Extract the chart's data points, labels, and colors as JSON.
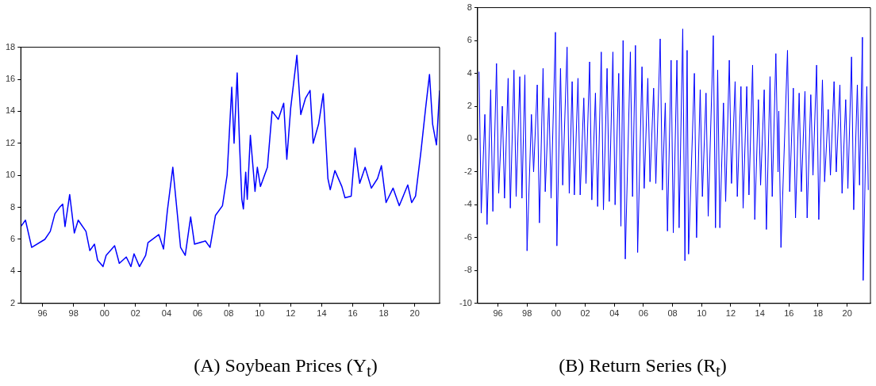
{
  "chart_data": [
    {
      "type": "line",
      "title": "(A) Soybean Prices (Y$_{t}$)",
      "xlim": [
        1994.6,
        2021.6
      ],
      "xticks": [
        {
          "value": 1996,
          "label": "96"
        },
        {
          "value": 1998,
          "label": "98"
        },
        {
          "value": 2000,
          "label": "00"
        },
        {
          "value": 2002,
          "label": "02"
        },
        {
          "value": 2004,
          "label": "04"
        },
        {
          "value": 2006,
          "label": "06"
        },
        {
          "value": 2008,
          "label": "08"
        },
        {
          "value": 2010,
          "label": "10"
        },
        {
          "value": 2012,
          "label": "12"
        },
        {
          "value": 2014,
          "label": "14"
        },
        {
          "value": 2016,
          "label": "16"
        },
        {
          "value": 2018,
          "label": "18"
        },
        {
          "value": 2020,
          "label": "20"
        }
      ],
      "ylim": [
        2,
        18
      ],
      "yticks": [
        2,
        4,
        6,
        8,
        10,
        12,
        14,
        16,
        18
      ],
      "series": [
        {
          "color": "#0000ff",
          "x": [
            1994.6,
            1994.9,
            1995.3,
            1996.15,
            1996.5,
            1996.8,
            1997.1,
            1997.3,
            1997.45,
            1997.75,
            1998.05,
            1998.3,
            1998.8,
            1999.05,
            1999.35,
            1999.55,
            1999.9,
            2000.1,
            2000.65,
            2000.95,
            2001.4,
            2001.7,
            2001.9,
            2002.25,
            2002.65,
            2002.8,
            2003.5,
            2003.8,
            2004.05,
            2004.4,
            2004.7,
            2004.9,
            2005.2,
            2005.55,
            2005.8,
            2006.5,
            2006.8,
            2007.15,
            2007.6,
            2007.9,
            2008.2,
            2008.35,
            2008.55,
            2008.7,
            2008.85,
            2008.95,
            2009.1,
            2009.2,
            2009.4,
            2009.7,
            2009.85,
            2010.05,
            2010.5,
            2010.8,
            2011.2,
            2011.55,
            2011.75,
            2012.0,
            2012.4,
            2012.65,
            2012.95,
            2013.25,
            2013.45,
            2013.8,
            2014.1,
            2014.4,
            2014.55,
            2014.85,
            2015.3,
            2015.5,
            2015.9,
            2016.15,
            2016.45,
            2016.8,
            2017.2,
            2017.6,
            2017.85,
            2018.15,
            2018.6,
            2019.0,
            2019.55,
            2019.8,
            2020.05,
            2020.4,
            2020.7,
            2020.95,
            2021.15,
            2021.4,
            2021.6
          ],
          "values": [
            6.8,
            7.2,
            5.5,
            6.0,
            6.5,
            7.6,
            8.0,
            8.2,
            6.8,
            8.8,
            6.4,
            7.2,
            6.5,
            5.3,
            5.7,
            4.7,
            4.3,
            5.0,
            5.6,
            4.5,
            4.9,
            4.3,
            5.1,
            4.3,
            5.0,
            5.8,
            6.3,
            5.4,
            7.8,
            10.5,
            7.5,
            5.5,
            5.0,
            7.4,
            5.7,
            5.9,
            5.5,
            7.5,
            8.1,
            10.0,
            15.5,
            12.0,
            16.4,
            12.0,
            8.5,
            7.9,
            10.2,
            8.5,
            12.5,
            9.0,
            10.5,
            9.3,
            10.5,
            14.0,
            13.5,
            14.5,
            11.0,
            14.2,
            17.5,
            13.8,
            14.8,
            15.3,
            12.0,
            13.2,
            15.1,
            9.8,
            9.1,
            10.3,
            9.3,
            8.6,
            8.7,
            11.7,
            9.5,
            10.5,
            9.2,
            9.8,
            10.6,
            8.3,
            9.2,
            8.1,
            9.4,
            8.3,
            8.7,
            11.5,
            14.2,
            16.3,
            13.2,
            11.9,
            15.3
          ]
        }
      ]
    },
    {
      "type": "line",
      "title": "(B) Return Series (R$_{t}$)",
      "xlim": [
        1994.6,
        2021.6
      ],
      "xticks": [
        {
          "value": 1996,
          "label": "96"
        },
        {
          "value": 1998,
          "label": "98"
        },
        {
          "value": 2000,
          "label": "00"
        },
        {
          "value": 2002,
          "label": "02"
        },
        {
          "value": 2004,
          "label": "04"
        },
        {
          "value": 2006,
          "label": "06"
        },
        {
          "value": 2008,
          "label": "08"
        },
        {
          "value": 2010,
          "label": "10"
        },
        {
          "value": 2012,
          "label": "12"
        },
        {
          "value": 2014,
          "label": "14"
        },
        {
          "value": 2016,
          "label": "16"
        },
        {
          "value": 2018,
          "label": "18"
        },
        {
          "value": 2020,
          "label": "20"
        }
      ],
      "ylim": [
        -10,
        8
      ],
      "yticks": [
        -10,
        -8,
        -6,
        -4,
        -2,
        0,
        2,
        4,
        6,
        8
      ],
      "series": [
        {
          "color": "#0000ff",
          "x": [
            1994.7,
            1994.85,
            1995.1,
            1995.25,
            1995.5,
            1995.65,
            1995.9,
            1996.05,
            1996.3,
            1996.45,
            1996.7,
            1996.85,
            1997.1,
            1997.25,
            1997.5,
            1997.65,
            1997.85,
            1998.0,
            1998.3,
            1998.45,
            1998.7,
            1998.85,
            1999.1,
            1999.25,
            1999.5,
            1999.65,
            1999.95,
            2000.05,
            2000.3,
            2000.45,
            2000.75,
            2000.9,
            2001.1,
            2001.25,
            2001.5,
            2001.65,
            2001.9,
            2002.05,
            2002.3,
            2002.45,
            2002.7,
            2002.85,
            2003.1,
            2003.25,
            2003.5,
            2003.65,
            2003.9,
            2004.05,
            2004.3,
            2004.45,
            2004.6,
            2004.75,
            2005.1,
            2005.25,
            2005.45,
            2005.6,
            2005.9,
            2006.05,
            2006.3,
            2006.45,
            2006.7,
            2006.85,
            2007.15,
            2007.3,
            2007.5,
            2007.65,
            2007.9,
            2008.05,
            2008.3,
            2008.45,
            2008.7,
            2008.85,
            2009.0,
            2009.1,
            2009.5,
            2009.65,
            2009.9,
            2010.05,
            2010.3,
            2010.45,
            2010.8,
            2010.95,
            2011.1,
            2011.25,
            2011.5,
            2011.65,
            2011.9,
            2012.05,
            2012.3,
            2012.45,
            2012.7,
            2012.85,
            2013.1,
            2013.25,
            2013.5,
            2013.65,
            2013.9,
            2014.05,
            2014.3,
            2014.45,
            2014.7,
            2014.85,
            2015.1,
            2015.25,
            2015.3,
            2015.45,
            2015.9,
            2016.05,
            2016.3,
            2016.45,
            2016.7,
            2016.85,
            2017.1,
            2017.25,
            2017.5,
            2017.65,
            2017.9,
            2018.05,
            2018.3,
            2018.45,
            2018.7,
            2018.85,
            2019.1,
            2019.25,
            2019.5,
            2019.65,
            2019.9,
            2020.05,
            2020.3,
            2020.45,
            2020.7,
            2020.85,
            2021.05,
            2021.1,
            2021.35,
            2021.45
          ],
          "values": [
            4.1,
            -4.5,
            1.5,
            -5.2,
            3.0,
            -4.4,
            4.6,
            -3.3,
            2.0,
            -3.6,
            3.7,
            -4.2,
            4.2,
            -3.5,
            3.8,
            -3.6,
            3.9,
            -6.8,
            1.5,
            -2.0,
            3.3,
            -5.1,
            4.3,
            -3.2,
            2.5,
            -3.6,
            6.5,
            -6.5,
            4.3,
            -2.8,
            5.6,
            -3.3,
            3.5,
            -3.4,
            3.7,
            -3.4,
            2.5,
            -2.7,
            4.7,
            -3.7,
            2.8,
            -4.1,
            5.3,
            -4.3,
            4.3,
            -3.8,
            5.3,
            -4.0,
            4.0,
            -5.3,
            6.0,
            -7.3,
            5.3,
            -3.5,
            5.7,
            -6.9,
            4.4,
            -3.0,
            3.7,
            -2.6,
            3.1,
            -2.7,
            6.1,
            -3.1,
            2.2,
            -5.6,
            4.8,
            -5.7,
            4.8,
            -5.4,
            6.7,
            -7.4,
            5.4,
            -7.0,
            4.0,
            -6.0,
            3.0,
            -3.5,
            2.8,
            -4.7,
            6.3,
            -5.4,
            4.2,
            -5.4,
            2.2,
            -3.8,
            4.8,
            -2.7,
            3.5,
            -3.5,
            3.2,
            -4.2,
            3.2,
            -3.4,
            4.5,
            -4.9,
            2.4,
            -2.8,
            3.0,
            -5.5,
            3.8,
            -3.5,
            5.2,
            -2.0,
            1.7,
            -6.6,
            5.4,
            -3.2,
            3.1,
            -4.8,
            2.8,
            -3.2,
            2.9,
            -4.8,
            2.7,
            -2.2,
            4.5,
            -4.9,
            3.6,
            -2.6,
            1.8,
            -2.2,
            3.5,
            -2.0,
            3.3,
            -3.3,
            2.4,
            -3.0,
            5.0,
            -4.3,
            3.3,
            -2.8,
            6.2,
            -8.6,
            3.2,
            -3.1
          ]
        }
      ]
    }
  ]
}
